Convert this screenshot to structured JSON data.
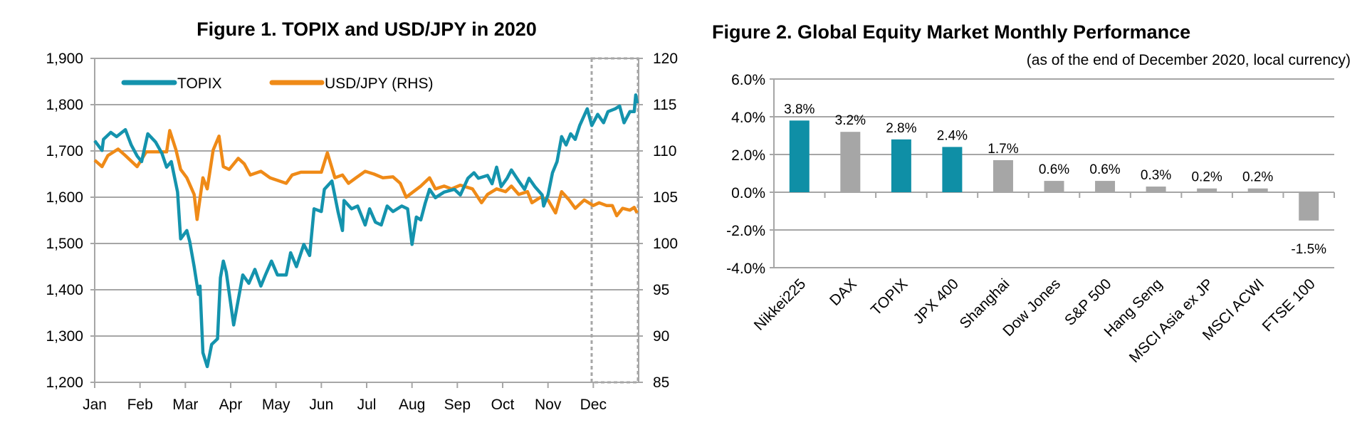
{
  "colors": {
    "topix": "#1493ad",
    "usdjpy": "#ef8a17",
    "teal_bar": "#0f8fa6",
    "gray_bar": "#a6a6a6",
    "grid": "#a6a6a6"
  },
  "chart_data": [
    {
      "type": "line",
      "title": "Figure 1. TOPIX and USD/JPY in 2020",
      "legend": "top-left",
      "grid": true,
      "x_tick_labels": [
        "Jan",
        "Feb",
        "Mar",
        "Apr",
        "May",
        "Jun",
        "Jul",
        "Aug",
        "Sep",
        "Oct",
        "Nov",
        "Dec"
      ],
      "y_left": {
        "lim": [
          1200,
          1900
        ],
        "ticks": [
          "1,200",
          "1,300",
          "1,400",
          "1,500",
          "1,600",
          "1,700",
          "1,800",
          "1,900"
        ]
      },
      "y_right": {
        "lim": [
          85,
          120
        ],
        "ticks": [
          "85",
          "90",
          "95",
          "100",
          "105",
          "110",
          "115",
          "120"
        ]
      },
      "highlight": "Dec (dashed box)",
      "series": [
        {
          "name": "TOPIX",
          "axis": "left",
          "points": [
            [
              "2020-01-01",
              1722
            ],
            [
              "2020-01-06",
              1701
            ],
            [
              "2020-01-07",
              1725
            ],
            [
              "2020-01-12",
              1740
            ],
            [
              "2020-01-16",
              1731
            ],
            [
              "2020-01-22",
              1746
            ],
            [
              "2020-01-26",
              1713
            ],
            [
              "2020-01-30",
              1689
            ],
            [
              "2020-02-02",
              1677
            ],
            [
              "2020-02-06",
              1737
            ],
            [
              "2020-02-11",
              1719
            ],
            [
              "2020-02-15",
              1695
            ],
            [
              "2020-02-18",
              1665
            ],
            [
              "2020-02-21",
              1677
            ],
            [
              "2020-02-25",
              1611
            ],
            [
              "2020-02-27",
              1510
            ],
            [
              "2020-03-02",
              1528
            ],
            [
              "2020-03-04",
              1504
            ],
            [
              "2020-03-07",
              1450
            ],
            [
              "2020-03-10",
              1390
            ],
            [
              "2020-03-11",
              1408
            ],
            [
              "2020-03-13",
              1264
            ],
            [
              "2020-03-16",
              1234
            ],
            [
              "2020-03-19",
              1282
            ],
            [
              "2020-03-23",
              1294
            ],
            [
              "2020-03-25",
              1426
            ],
            [
              "2020-03-27",
              1462
            ],
            [
              "2020-03-29",
              1438
            ],
            [
              "2020-04-03",
              1324
            ],
            [
              "2020-04-06",
              1378
            ],
            [
              "2020-04-09",
              1432
            ],
            [
              "2020-04-13",
              1414
            ],
            [
              "2020-04-17",
              1444
            ],
            [
              "2020-04-21",
              1408
            ],
            [
              "2020-04-24",
              1432
            ],
            [
              "2020-04-28",
              1462
            ],
            [
              "2020-05-02",
              1432
            ],
            [
              "2020-05-08",
              1432
            ],
            [
              "2020-05-11",
              1480
            ],
            [
              "2020-05-15",
              1450
            ],
            [
              "2020-05-20",
              1498
            ],
            [
              "2020-05-24",
              1474
            ],
            [
              "2020-05-27",
              1575
            ],
            [
              "2020-06-01",
              1569
            ],
            [
              "2020-06-03",
              1617
            ],
            [
              "2020-06-08",
              1635
            ],
            [
              "2020-06-12",
              1569
            ],
            [
              "2020-06-15",
              1528
            ],
            [
              "2020-06-16",
              1593
            ],
            [
              "2020-06-21",
              1575
            ],
            [
              "2020-06-25",
              1581
            ],
            [
              "2020-06-30",
              1540
            ],
            [
              "2020-07-03",
              1575
            ],
            [
              "2020-07-07",
              1546
            ],
            [
              "2020-07-11",
              1540
            ],
            [
              "2020-07-15",
              1581
            ],
            [
              "2020-07-19",
              1569
            ],
            [
              "2020-07-25",
              1581
            ],
            [
              "2020-07-29",
              1575
            ],
            [
              "2020-08-01",
              1498
            ],
            [
              "2020-08-04",
              1557
            ],
            [
              "2020-08-07",
              1551
            ],
            [
              "2020-08-10",
              1587
            ],
            [
              "2020-08-13",
              1617
            ],
            [
              "2020-08-17",
              1599
            ],
            [
              "2020-08-23",
              1611
            ],
            [
              "2020-08-30",
              1617
            ],
            [
              "2020-09-03",
              1605
            ],
            [
              "2020-09-08",
              1641
            ],
            [
              "2020-09-12",
              1653
            ],
            [
              "2020-09-15",
              1641
            ],
            [
              "2020-09-21",
              1647
            ],
            [
              "2020-09-24",
              1629
            ],
            [
              "2020-09-27",
              1665
            ],
            [
              "2020-09-30",
              1623
            ],
            [
              "2020-10-04",
              1641
            ],
            [
              "2020-10-07",
              1659
            ],
            [
              "2020-10-12",
              1635
            ],
            [
              "2020-10-16",
              1617
            ],
            [
              "2020-10-19",
              1641
            ],
            [
              "2020-10-23",
              1623
            ],
            [
              "2020-10-28",
              1605
            ],
            [
              "2020-10-29",
              1581
            ],
            [
              "2020-11-01",
              1605
            ],
            [
              "2020-11-04",
              1653
            ],
            [
              "2020-11-07",
              1677
            ],
            [
              "2020-11-10",
              1731
            ],
            [
              "2020-11-13",
              1713
            ],
            [
              "2020-11-16",
              1737
            ],
            [
              "2020-11-19",
              1725
            ],
            [
              "2020-11-22",
              1755
            ],
            [
              "2020-11-27",
              1791
            ],
            [
              "2020-11-30",
              1755
            ],
            [
              "2020-12-04",
              1779
            ],
            [
              "2020-12-08",
              1761
            ],
            [
              "2020-12-11",
              1785
            ],
            [
              "2020-12-16",
              1791
            ],
            [
              "2020-12-19",
              1797
            ],
            [
              "2020-12-22",
              1761
            ],
            [
              "2020-12-26",
              1785
            ],
            [
              "2020-12-29",
              1785
            ],
            [
              "2020-12-30",
              1821
            ],
            [
              "2020-12-31",
              1803
            ]
          ]
        },
        {
          "name": "USD/JPY (RHS)",
          "axis": "right",
          "points": [
            [
              "2020-01-01",
              109.0
            ],
            [
              "2020-01-06",
              108.3
            ],
            [
              "2020-01-10",
              109.5
            ],
            [
              "2020-01-17",
              110.2
            ],
            [
              "2020-01-22",
              109.5
            ],
            [
              "2020-01-26",
              108.9
            ],
            [
              "2020-01-30",
              108.3
            ],
            [
              "2020-02-05",
              109.9
            ],
            [
              "2020-02-11",
              109.9
            ],
            [
              "2020-02-18",
              109.9
            ],
            [
              "2020-02-20",
              112.2
            ],
            [
              "2020-02-24",
              110.1
            ],
            [
              "2020-02-27",
              108.0
            ],
            [
              "2020-03-02",
              107.1
            ],
            [
              "2020-03-07",
              105.3
            ],
            [
              "2020-03-09",
              102.6
            ],
            [
              "2020-03-13",
              107.1
            ],
            [
              "2020-03-16",
              105.9
            ],
            [
              "2020-03-20",
              110.1
            ],
            [
              "2020-03-24",
              111.6
            ],
            [
              "2020-03-27",
              108.3
            ],
            [
              "2020-03-31",
              108.0
            ],
            [
              "2020-04-06",
              109.2
            ],
            [
              "2020-04-10",
              108.6
            ],
            [
              "2020-04-14",
              107.4
            ],
            [
              "2020-04-21",
              107.8
            ],
            [
              "2020-04-27",
              107.1
            ],
            [
              "2020-05-08",
              106.5
            ],
            [
              "2020-05-12",
              107.4
            ],
            [
              "2020-05-18",
              107.7
            ],
            [
              "2020-05-27",
              107.7
            ],
            [
              "2020-06-01",
              107.7
            ],
            [
              "2020-06-05",
              109.8
            ],
            [
              "2020-06-10",
              107.1
            ],
            [
              "2020-06-15",
              107.4
            ],
            [
              "2020-06-19",
              106.5
            ],
            [
              "2020-06-24",
              107.1
            ],
            [
              "2020-06-30",
              107.8
            ],
            [
              "2020-07-06",
              107.5
            ],
            [
              "2020-07-12",
              107.1
            ],
            [
              "2020-07-19",
              107.2
            ],
            [
              "2020-07-24",
              106.5
            ],
            [
              "2020-07-28",
              105.0
            ],
            [
              "2020-08-02",
              105.6
            ],
            [
              "2020-08-07",
              106.2
            ],
            [
              "2020-08-13",
              107.1
            ],
            [
              "2020-08-17",
              105.9
            ],
            [
              "2020-08-23",
              106.2
            ],
            [
              "2020-08-28",
              105.9
            ],
            [
              "2020-09-03",
              106.3
            ],
            [
              "2020-09-11",
              105.9
            ],
            [
              "2020-09-17",
              104.4
            ],
            [
              "2020-09-21",
              105.3
            ],
            [
              "2020-09-27",
              105.9
            ],
            [
              "2020-10-03",
              105.6
            ],
            [
              "2020-10-07",
              106.2
            ],
            [
              "2020-10-12",
              105.3
            ],
            [
              "2020-10-18",
              105.6
            ],
            [
              "2020-10-21",
              104.4
            ],
            [
              "2020-10-27",
              105.0
            ],
            [
              "2020-11-01",
              104.7
            ],
            [
              "2020-11-06",
              103.3
            ],
            [
              "2020-11-10",
              105.6
            ],
            [
              "2020-11-15",
              104.7
            ],
            [
              "2020-11-19",
              103.8
            ],
            [
              "2020-11-25",
              104.7
            ],
            [
              "2020-12-01",
              104.1
            ],
            [
              "2020-12-05",
              104.4
            ],
            [
              "2020-12-10",
              104.1
            ],
            [
              "2020-12-14",
              104.1
            ],
            [
              "2020-12-17",
              103.0
            ],
            [
              "2020-12-21",
              103.8
            ],
            [
              "2020-12-26",
              103.6
            ],
            [
              "2020-12-29",
              103.9
            ],
            [
              "2020-12-31",
              103.3
            ]
          ]
        }
      ]
    },
    {
      "type": "bar",
      "title": "Figure 2. Global Equity Market Monthly Performance",
      "subtitle": "(as of the end of December 2020, local currency)",
      "grid": true,
      "ylim": [
        -4,
        6
      ],
      "y_ticks": [
        "-4.0%",
        "-2.0%",
        "0.0%",
        "2.0%",
        "4.0%",
        "6.0%"
      ],
      "categories": [
        "Nikkei225",
        "DAX",
        "TOPIX",
        "JPX 400",
        "Shanghai",
        "Dow Jones",
        "S&P 500",
        "Hang Seng",
        "MSCI Asia ex JP",
        "MSCI ACWI",
        "FTSE 100"
      ],
      "values": [
        3.8,
        3.2,
        2.8,
        2.4,
        1.7,
        0.6,
        0.6,
        0.3,
        0.2,
        0.2,
        -1.5
      ],
      "data_labels": [
        "3.8%",
        "3.2%",
        "2.8%",
        "2.4%",
        "1.7%",
        "0.6%",
        "0.6%",
        "0.3%",
        "0.2%",
        "0.2%",
        "-1.5%"
      ],
      "highlighted": [
        true,
        false,
        true,
        true,
        false,
        false,
        false,
        false,
        false,
        false,
        false
      ]
    }
  ]
}
